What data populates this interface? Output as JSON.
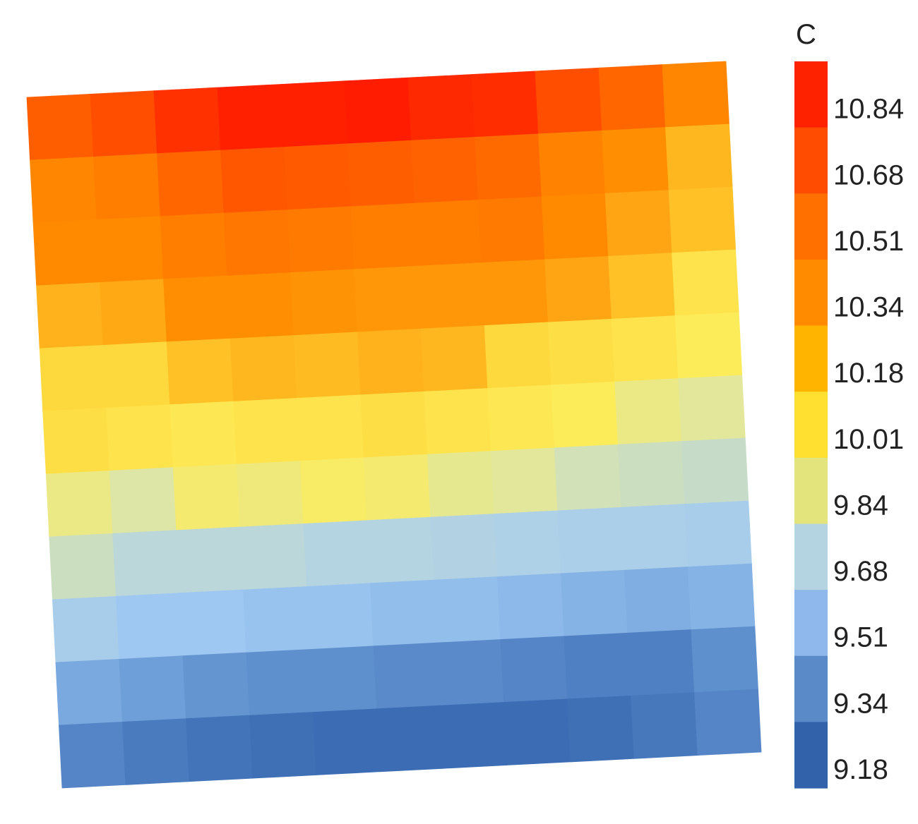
{
  "chart_data": {
    "type": "heatmap",
    "title": "",
    "colorbar": {
      "title": "C",
      "tick_labels": [
        "10.84",
        "10.68",
        "10.51",
        "10.34",
        "10.18",
        "10.01",
        "9.84",
        "9.68",
        "9.51",
        "9.34",
        "9.18"
      ],
      "band_colors": [
        "#ff2200",
        "#ff4c00",
        "#ff7000",
        "#ff8b00",
        "#ffb400",
        "#ffe030",
        "#e4e47c",
        "#b3d4e0",
        "#8fb8ec",
        "#5a8ac8",
        "#3263aa"
      ]
    },
    "grid": {
      "rows": 11,
      "cols": 11,
      "values": [
        [
          10.62,
          10.7,
          10.84,
          10.92,
          10.92,
          10.94,
          10.88,
          10.86,
          10.7,
          10.58,
          10.42
        ],
        [
          10.42,
          10.46,
          10.58,
          10.66,
          10.64,
          10.62,
          10.6,
          10.56,
          10.44,
          10.38,
          10.2
        ],
        [
          10.4,
          10.4,
          10.46,
          10.5,
          10.48,
          10.46,
          10.46,
          10.48,
          10.4,
          10.28,
          10.16
        ],
        [
          10.22,
          10.26,
          10.38,
          10.38,
          10.36,
          10.34,
          10.34,
          10.34,
          10.28,
          10.16,
          10.02
        ],
        [
          10.06,
          10.06,
          10.16,
          10.2,
          10.18,
          10.22,
          10.2,
          10.06,
          10.04,
          10.02,
          9.98
        ],
        [
          10.04,
          10.02,
          10.0,
          10.02,
          10.02,
          10.04,
          10.02,
          10.0,
          9.98,
          9.9,
          9.86
        ],
        [
          9.9,
          9.84,
          9.94,
          9.92,
          9.96,
          9.94,
          9.88,
          9.86,
          9.8,
          9.78,
          9.76
        ],
        [
          9.78,
          9.72,
          9.72,
          9.72,
          9.7,
          9.7,
          9.68,
          9.66,
          9.64,
          9.64,
          9.62
        ],
        [
          9.62,
          9.56,
          9.56,
          9.54,
          9.54,
          9.52,
          9.52,
          9.5,
          9.48,
          9.46,
          9.48
        ],
        [
          9.44,
          9.4,
          9.36,
          9.34,
          9.34,
          9.32,
          9.32,
          9.3,
          9.28,
          9.28,
          9.34
        ],
        [
          9.3,
          9.26,
          9.22,
          9.2,
          9.18,
          9.18,
          9.18,
          9.18,
          9.2,
          9.24,
          9.3
        ]
      ]
    }
  }
}
